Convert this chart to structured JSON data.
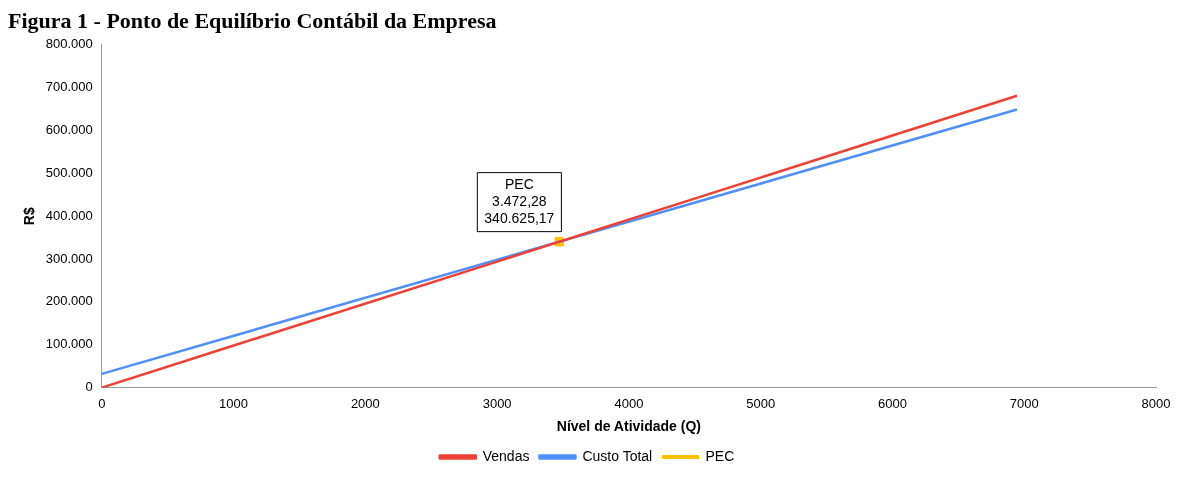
{
  "chart_data": {
    "type": "line",
    "title": "Figura 1 - Ponto de Equilíbrio Contábil da Empresa",
    "xlabel": "Nível de Atividade (Q)",
    "ylabel": "R$",
    "series": [
      {
        "name": "Vendas",
        "color": "#ee4035",
        "marker": "none",
        "x": [
          0,
          6945
        ],
        "values": [
          0,
          681000
        ]
      },
      {
        "name": "Custo Total",
        "color": "#4f8ff7",
        "marker": "none",
        "x": [
          0,
          6945
        ],
        "values": [
          32000,
          649000
        ]
      },
      {
        "name": "PEC",
        "type": "scatter",
        "marker": "square",
        "color": "#ffc000",
        "x": [
          3472.28
        ],
        "values": [
          340625.17
        ]
      }
    ],
    "xlim": [
      0,
      8000
    ],
    "xticks": [
      0,
      1000,
      2000,
      3000,
      4000,
      5000,
      6000,
      7000,
      8000
    ],
    "ylim": [
      0,
      800000
    ],
    "yticks": [
      0,
      {
        "value": 100000,
        "label": "100.000"
      },
      {
        "value": 200000,
        "label": "200.000"
      },
      {
        "value": 300000,
        "label": "300.000"
      },
      {
        "value": 400000,
        "label": "400.000"
      },
      {
        "value": 500000,
        "label": "500.000"
      },
      {
        "value": 600000,
        "label": "600.000"
      },
      {
        "value": 700000,
        "label": "700.000"
      },
      {
        "value": 800000,
        "label": "800.000"
      }
    ],
    "annotations": [
      {
        "text": "PEC\n3.472,28\n340.625,17",
        "x": 3472.28,
        "y": 340625.17
      }
    ],
    "grid": false,
    "legend": "bottom",
    "line_style": "solid"
  }
}
